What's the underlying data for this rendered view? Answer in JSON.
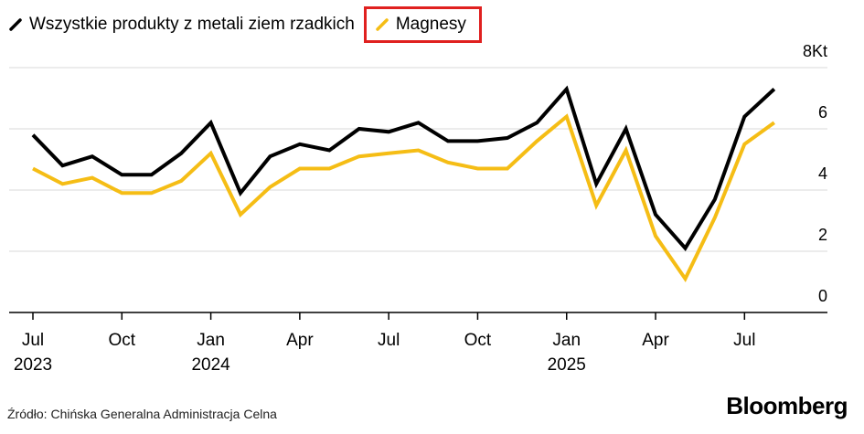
{
  "chart_data": {
    "type": "line",
    "x": [
      "2023-07",
      "2023-08",
      "2023-09",
      "2023-10",
      "2023-11",
      "2023-12",
      "2024-01",
      "2024-02",
      "2024-03",
      "2024-04",
      "2024-05",
      "2024-06",
      "2024-07",
      "2024-08",
      "2024-09",
      "2024-10",
      "2024-11",
      "2024-12",
      "2025-01",
      "2025-02",
      "2025-03",
      "2025-04",
      "2025-05",
      "2025-06",
      "2025-07",
      "2025-08"
    ],
    "series": [
      {
        "name": "Wszystkie produkty z metali ziem rzadkich",
        "color": "#000000",
        "values": [
          5.8,
          4.8,
          5.1,
          4.5,
          4.5,
          5.2,
          6.2,
          3.9,
          5.1,
          5.5,
          5.3,
          6.0,
          5.9,
          6.2,
          5.6,
          5.6,
          5.7,
          6.2,
          7.3,
          4.2,
          6.0,
          3.2,
          2.1,
          3.7,
          6.4,
          7.3
        ]
      },
      {
        "name": "Magnesy",
        "color": "#f5bd15",
        "values": [
          4.7,
          4.2,
          4.4,
          3.9,
          3.9,
          4.3,
          5.2,
          3.2,
          4.1,
          4.7,
          4.7,
          5.1,
          5.2,
          5.3,
          4.9,
          4.7,
          4.7,
          5.6,
          6.4,
          3.5,
          5.3,
          2.5,
          1.1,
          3.1,
          5.5,
          6.2
        ]
      }
    ],
    "ylim": [
      0,
      8
    ],
    "yticks": [
      "0",
      "2",
      "4",
      "6",
      "8Kt"
    ],
    "xticks": [
      {
        "x": "2023-07",
        "label": "Jul",
        "year": "2023"
      },
      {
        "x": "2023-10",
        "label": "Oct",
        "year": ""
      },
      {
        "x": "2024-01",
        "label": "Jan",
        "year": "2024"
      },
      {
        "x": "2024-04",
        "label": "Apr",
        "year": ""
      },
      {
        "x": "2024-07",
        "label": "Jul",
        "year": ""
      },
      {
        "x": "2024-10",
        "label": "Oct",
        "year": ""
      },
      {
        "x": "2025-01",
        "label": "Jan",
        "year": "2025"
      },
      {
        "x": "2025-04",
        "label": "Apr",
        "year": ""
      },
      {
        "x": "2025-07",
        "label": "Jul",
        "year": ""
      }
    ],
    "grid": true,
    "legend": "top-left"
  },
  "source": "Źródło: Chińska Generalna Administracja Celna",
  "brand": "Bloomberg",
  "colors": {
    "highlight_box": "#e0201f",
    "grid": "#d9d9d9"
  }
}
